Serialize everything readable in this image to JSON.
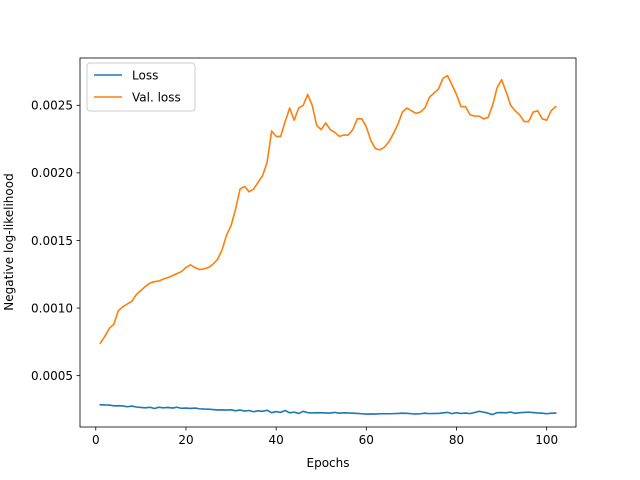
{
  "chart_data": {
    "type": "line",
    "title": "",
    "xlabel": "Epochs",
    "ylabel": "Negative log-likelihood",
    "xlim": [
      -3.5,
      106.5
    ],
    "ylim": [
      0.00012,
      0.00285
    ],
    "xticks": [
      0,
      20,
      40,
      60,
      80,
      100
    ],
    "yticks": [
      0.0005,
      0.001,
      0.0015,
      0.002,
      0.0025
    ],
    "ytick_labels": [
      "0.0005",
      "0.0010",
      "0.0015",
      "0.0020",
      "0.0025"
    ],
    "grid": false,
    "legend": "top-left",
    "x": [
      1,
      2,
      3,
      4,
      5,
      6,
      7,
      8,
      9,
      10,
      11,
      12,
      13,
      14,
      15,
      16,
      17,
      18,
      19,
      20,
      21,
      22,
      23,
      24,
      25,
      26,
      27,
      28,
      29,
      30,
      31,
      32,
      33,
      34,
      35,
      36,
      37,
      38,
      39,
      40,
      41,
      42,
      43,
      44,
      45,
      46,
      47,
      48,
      49,
      50,
      51,
      52,
      53,
      54,
      55,
      56,
      57,
      58,
      59,
      60,
      61,
      62,
      63,
      64,
      65,
      66,
      67,
      68,
      69,
      70,
      71,
      72,
      73,
      74,
      75,
      76,
      77,
      78,
      79,
      80,
      81,
      82,
      83,
      84,
      85,
      86,
      87,
      88,
      89,
      90,
      91,
      92,
      93,
      94,
      95,
      96,
      97,
      98,
      99,
      100,
      101,
      102
    ],
    "series": [
      {
        "name": "Loss",
        "color": "#1f77b4",
        "values": [
          0.000285,
          0.000283,
          0.000282,
          0.000277,
          0.000278,
          0.000276,
          0.00027,
          0.000275,
          0.000268,
          0.000265,
          0.000262,
          0.000266,
          0.000257,
          0.000266,
          0.000262,
          0.000265,
          0.00026,
          0.000266,
          0.000258,
          0.00026,
          0.000257,
          0.00026,
          0.000255,
          0.000253,
          0.000252,
          0.000249,
          0.000246,
          0.000247,
          0.000245,
          0.000247,
          0.00024,
          0.000246,
          0.000238,
          0.000242,
          0.000233,
          0.00024,
          0.000236,
          0.000244,
          0.000226,
          0.000234,
          0.000228,
          0.000242,
          0.000225,
          0.00023,
          0.00022,
          0.000236,
          0.000226,
          0.000224,
          0.000226,
          0.000225,
          0.000224,
          0.000223,
          0.000228,
          0.000222,
          0.000225,
          0.000224,
          0.000222,
          0.00022,
          0.000218,
          0.000216,
          0.000217,
          0.000216,
          0.000218,
          0.000218,
          0.000218,
          0.000219,
          0.00022,
          0.000222,
          0.000221,
          0.000218,
          0.000216,
          0.000218,
          0.000222,
          0.000219,
          0.00022,
          0.00022,
          0.000225,
          0.000228,
          0.000219,
          0.000226,
          0.00022,
          0.000223,
          0.000219,
          0.000227,
          0.000236,
          0.00023,
          0.000222,
          0.000212,
          0.000226,
          0.000227,
          0.000225,
          0.000231,
          0.000221,
          0.000226,
          0.000228,
          0.00023,
          0.000227,
          0.000224,
          0.000222,
          0.000218,
          0.000222,
          0.000223
        ]
      },
      {
        "name": "Val. loss",
        "color": "#ff7f0e",
        "values": [
          0.00074,
          0.00079,
          0.00085,
          0.00088,
          0.00098,
          0.00101,
          0.00103,
          0.00105,
          0.0011,
          0.00113,
          0.00116,
          0.001185,
          0.001195,
          0.0012,
          0.001215,
          0.001225,
          0.00124,
          0.001255,
          0.00127,
          0.0013,
          0.00132,
          0.0013,
          0.001285,
          0.00129,
          0.0013,
          0.001325,
          0.00136,
          0.00143,
          0.00154,
          0.00161,
          0.00173,
          0.00188,
          0.0019,
          0.00186,
          0.00188,
          0.00193,
          0.00198,
          0.00208,
          0.00231,
          0.00227,
          0.00227,
          0.00238,
          0.00248,
          0.00239,
          0.00248,
          0.0025,
          0.00258,
          0.0025,
          0.00235,
          0.00232,
          0.00237,
          0.00232,
          0.0023,
          0.00227,
          0.00228,
          0.00228,
          0.00232,
          0.0024,
          0.0024,
          0.00234,
          0.00224,
          0.00218,
          0.00217,
          0.00219,
          0.00223,
          0.00229,
          0.00236,
          0.00245,
          0.00248,
          0.00246,
          0.00244,
          0.00245,
          0.00248,
          0.00256,
          0.00259,
          0.00262,
          0.0027,
          0.00272,
          0.00265,
          0.00258,
          0.00249,
          0.00249,
          0.00243,
          0.00242,
          0.00242,
          0.0024,
          0.00241,
          0.0025,
          0.00263,
          0.00269,
          0.0026,
          0.0025,
          0.00246,
          0.00243,
          0.00238,
          0.00238,
          0.00245,
          0.00246,
          0.0024,
          0.00239,
          0.00246,
          0.00249
        ]
      }
    ]
  }
}
